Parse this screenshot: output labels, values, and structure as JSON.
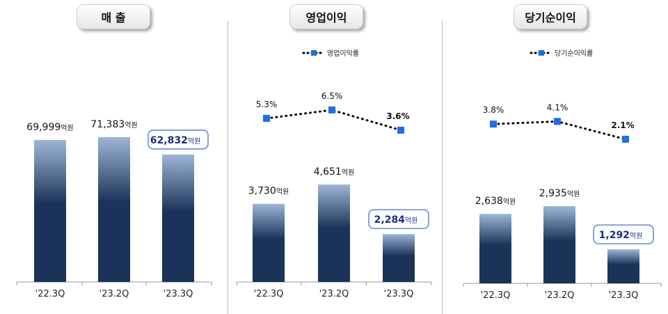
{
  "colors": {
    "bar_top": "#9db6d8",
    "bar_bottom": "#1b3358",
    "highlight_text": "#1f2d80",
    "highlight_border": "#4a72c4",
    "marker": "#1f6fe0"
  },
  "unit": "억원",
  "chart_data": [
    {
      "type": "bar",
      "title": "매 출",
      "categories": [
        "'22.3Q",
        "'23.2Q",
        "'23.3Q"
      ],
      "values": [
        69999,
        71383,
        62832
      ],
      "value_labels": [
        "69,999",
        "71,383",
        "62,832"
      ],
      "highlight_index": 2
    },
    {
      "type": "bar",
      "title": "영업이익",
      "categories": [
        "'22.3Q",
        "'23.2Q",
        "'23.3Q"
      ],
      "values": [
        3730,
        4651,
        2284
      ],
      "value_labels": [
        "3,730",
        "4,651",
        "2,284"
      ],
      "highlight_index": 2,
      "line": {
        "name": "영업이익률",
        "values": [
          5.3,
          6.5,
          3.6
        ],
        "labels": [
          "5.3%",
          "6.5%",
          "3.6%"
        ]
      }
    },
    {
      "type": "bar",
      "title": "당기순이익",
      "categories": [
        "'22.3Q",
        "'23.2Q",
        "'23.3Q"
      ],
      "values": [
        2638,
        2935,
        1292
      ],
      "value_labels": [
        "2,638",
        "2,935",
        "1,292"
      ],
      "highlight_index": 2,
      "line": {
        "name": "당기순이익률",
        "values": [
          3.8,
          4.1,
          2.1
        ],
        "labels": [
          "3.8%",
          "4.1%",
          "2.1%"
        ]
      }
    }
  ]
}
